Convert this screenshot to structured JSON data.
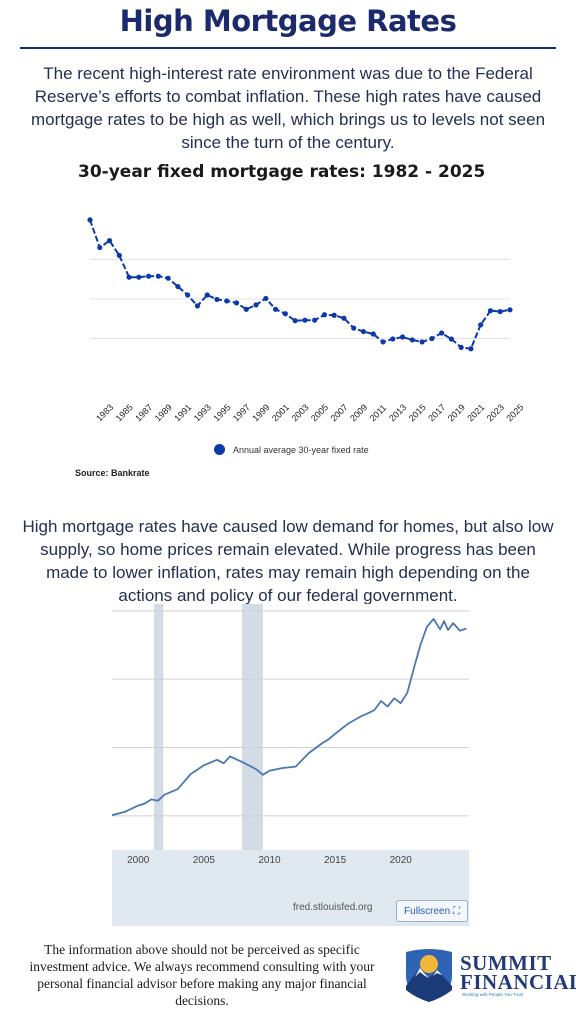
{
  "page": {
    "title": "High Mortgage Rates",
    "intro": "The recent high-interest rate environment was due to the Federal Reserve’s efforts to combat inflation. These high rates have caused mortgage rates to be high as well, which brings us to levels not seen since the turn of the century.",
    "paragraph2": "High mortgage rates have caused low demand for homes, but also low supply, so home prices remain elevated. While progress has been made to lower inflation, rates may remain high depending on the actions and policy of our federal government.",
    "disclaimer": "The information above should not be perceived as specific investment advice. We always recommend consulting with your personal financial advisor before making any major financial decisions.",
    "source": "Source: Bankrate",
    "fred_source": "fred.stlouisfed.org",
    "fullscreen_label": "Fullscreen ⛶"
  },
  "logo": {
    "name_line1": "SUMMIT",
    "name_line2": "FINANCIAL",
    "tagline": "Working with People You Trust"
  },
  "colors": {
    "title": "#1a2a6c",
    "series": "#0b3aa8",
    "fred_line": "#4a78b0",
    "fred_bg": "#e1e9f0",
    "recession": "#d3dce4"
  },
  "chart_data": [
    {
      "type": "line",
      "title": "30-year fixed mortgage rates: 1982 - 2025",
      "series": [
        {
          "name": "Annual average 30-year fixed rate",
          "x": [
            1982,
            1983,
            1984,
            1985,
            1986,
            1987,
            1988,
            1989,
            1990,
            1991,
            1992,
            1993,
            1994,
            1995,
            1996,
            1997,
            1998,
            1999,
            2000,
            2001,
            2002,
            2003,
            2004,
            2005,
            2006,
            2007,
            2008,
            2009,
            2010,
            2011,
            2012,
            2013,
            2014,
            2015,
            2016,
            2017,
            2018,
            2019,
            2020,
            2021,
            2022,
            2023,
            2024,
            2025
          ],
          "values": [
            16.0,
            13.2,
            13.9,
            12.4,
            10.2,
            10.2,
            10.3,
            10.3,
            10.1,
            9.25,
            8.4,
            7.3,
            8.4,
            7.95,
            7.8,
            7.6,
            6.95,
            7.4,
            8.05,
            6.95,
            6.5,
            5.8,
            5.85,
            5.85,
            6.4,
            6.35,
            6.05,
            5.05,
            4.7,
            4.45,
            3.65,
            3.95,
            4.15,
            3.85,
            3.65,
            3.99,
            4.55,
            3.94,
            3.1,
            2.96,
            5.38,
            6.81,
            6.72,
            6.9
          ]
        }
      ],
      "x_tick_labels": [
        "1983",
        "1985",
        "1987",
        "1989",
        "1991",
        "1993",
        "1995",
        "1997",
        "1999",
        "2001",
        "2003",
        "2005",
        "2007",
        "2009",
        "2011",
        "2013",
        "2015",
        "2017",
        "2019",
        "2021",
        "2023",
        "2025"
      ],
      "ylim": [
        0,
        17
      ],
      "grid": true,
      "legend": "bottom"
    },
    {
      "type": "line",
      "series": [
        {
          "x": [
            1998.0,
            1999.0,
            2000.0,
            2000.5,
            2001.0,
            2001.5,
            2002.0,
            2003.0,
            2004.0,
            2005.0,
            2006.0,
            2006.5,
            2007.0,
            2008.0,
            2009.0,
            2009.5,
            2010.0,
            2011.0,
            2012.0,
            2013.0,
            2014.0,
            2014.5,
            2015.0,
            2016.0,
            2017.0,
            2017.5,
            2018.0,
            2018.5,
            2019.0,
            2019.5,
            2020.0,
            2020.5,
            2021.0,
            2021.5,
            2022.0,
            2022.5,
            2023.0,
            2023.3,
            2023.6,
            2024.0,
            2024.5,
            2025.0
          ],
          "values": [
            151,
            156,
            165,
            168,
            174,
            172,
            181,
            189,
            211,
            224,
            232,
            227,
            237,
            228,
            218,
            210,
            216,
            220,
            222,
            242,
            256,
            262,
            270,
            285,
            296,
            300,
            305,
            318,
            310,
            322,
            315,
            330,
            366,
            400,
            427,
            438,
            423,
            435,
            422,
            432,
            421,
            424
          ]
        }
      ],
      "x_tick_labels": [
        "2000",
        "2005",
        "2010",
        "2015",
        "2020"
      ],
      "xlim": [
        1998,
        2025.2
      ],
      "ylim": [
        100,
        460
      ],
      "recessions": [
        [
          2001.2,
          2001.9
        ],
        [
          2007.9,
          2009.5
        ]
      ],
      "grid": true
    }
  ]
}
